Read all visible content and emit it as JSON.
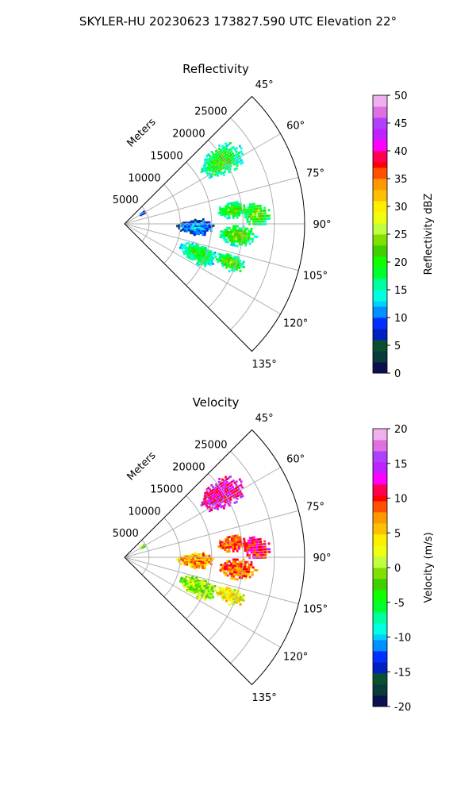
{
  "figure_title": "SKYLER-HU  20230623  173827.590 UTC Elevation 22°",
  "chart_data": [
    {
      "type": "heatmap",
      "subtype": "polar-ppi",
      "title": "Reflectivity",
      "field": "ref",
      "range_label": "Meters",
      "range_ticks": [
        "5000",
        "10000",
        "15000",
        "20000",
        "25000"
      ],
      "range_tick_values": [
        5000,
        10000,
        15000,
        20000,
        25000
      ],
      "azimuth_ticks": [
        "45°",
        "60°",
        "75°",
        "90°",
        "105°",
        "120°",
        "135°"
      ],
      "azimuth_tick_values": [
        45,
        60,
        75,
        90,
        105,
        120,
        135
      ],
      "azimuth_range": [
        45,
        135
      ],
      "colorbar": {
        "label": "Reflectivity dBZ",
        "min": 0,
        "max": 50,
        "ticks": [
          "0",
          "5",
          "10",
          "15",
          "20",
          "25",
          "30",
          "35",
          "40",
          "45",
          "50"
        ]
      }
    },
    {
      "type": "heatmap",
      "subtype": "polar-ppi",
      "title": "Velocity",
      "field": "vel",
      "range_label": "Meters",
      "range_ticks": [
        "5000",
        "10000",
        "15000",
        "20000",
        "25000"
      ],
      "range_tick_values": [
        5000,
        10000,
        15000,
        20000,
        25000
      ],
      "azimuth_ticks": [
        "45°",
        "60°",
        "75°",
        "90°",
        "105°",
        "120°",
        "135°"
      ],
      "azimuth_tick_values": [
        45,
        60,
        75,
        90,
        105,
        120,
        135
      ],
      "azimuth_range": [
        45,
        135
      ],
      "colorbar": {
        "label": "Velocity (m/s)",
        "min": -20,
        "max": 20,
        "ticks": [
          "-20",
          "-15",
          "-10",
          "-5",
          "0",
          "5",
          "10",
          "15",
          "20"
        ]
      }
    }
  ],
  "echo_cells": [
    {
      "az": 57,
      "range_m": 19500,
      "az_spread": 7,
      "range_spread": 3600,
      "ref": 21,
      "vel": 13
    },
    {
      "az": 83,
      "range_m": 18500,
      "az_spread": 4,
      "range_spread": 2600,
      "ref": 22,
      "vel": 9
    },
    {
      "az": 86,
      "range_m": 22300,
      "az_spread": 5,
      "range_spread": 2200,
      "ref": 23,
      "vel": 11
    },
    {
      "az": 96,
      "range_m": 19300,
      "az_spread": 5,
      "range_spread": 2800,
      "ref": 23,
      "vel": 8
    },
    {
      "az": 112,
      "range_m": 13800,
      "az_spread": 7,
      "range_spread": 3000,
      "ref": 20,
      "vel": 0
    },
    {
      "az": 110,
      "range_m": 19000,
      "az_spread": 4,
      "range_spread": 2600,
      "ref": 22,
      "vel": 3
    },
    {
      "az": 93,
      "range_m": 12500,
      "az_spread": 6,
      "range_spread": 2800,
      "ref": 11,
      "vel": 6
    },
    {
      "az": 60,
      "range_m": 4400,
      "az_spread": 3,
      "range_spread": 500,
      "ref": 11,
      "vel": 1
    }
  ],
  "colormap": [
    "#0a1050",
    "#0a3a3a",
    "#0a5030",
    "#0020c0",
    "#0030ff",
    "#0090ff",
    "#00d0ff",
    "#00ffe0",
    "#00ffa0",
    "#00ff30",
    "#10ff00",
    "#40d000",
    "#80e000",
    "#c0ff40",
    "#f0ff10",
    "#ffee00",
    "#ffc000",
    "#ff9900",
    "#ff5000",
    "#ff0000",
    "#ff0050",
    "#ff00ff",
    "#c020ff",
    "#b040ff",
    "#e070e0",
    "#f0b0f0",
    "#fff0ff"
  ]
}
